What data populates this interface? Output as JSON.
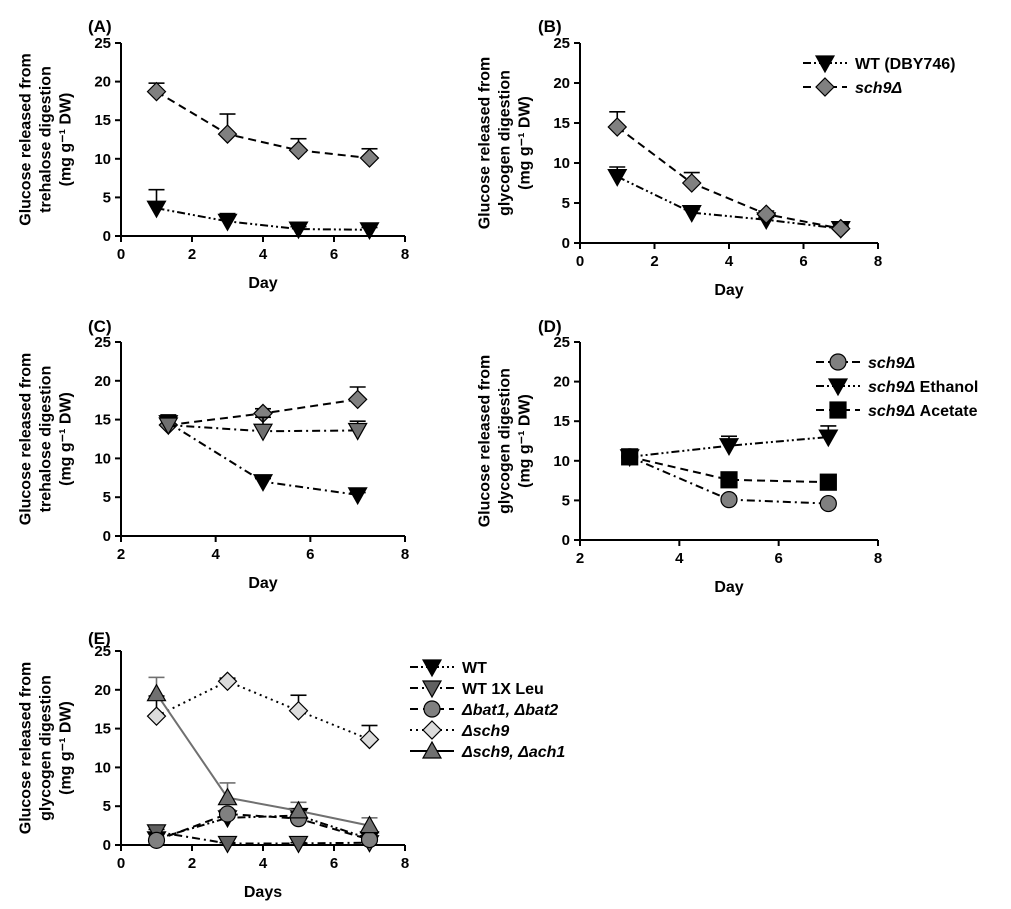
{
  "chart_data": [
    {
      "id": "A",
      "type": "line",
      "panel_label": "(A)",
      "xlabel": "Day",
      "ylabel_lines": [
        "Glucose released from",
        "trehalose digestion",
        "(mg g⁻¹ DW)"
      ],
      "xlim": [
        0,
        8
      ],
      "ylim": [
        0,
        25
      ],
      "xticks": [
        0,
        2,
        4,
        6,
        8
      ],
      "yticks": [
        0,
        5,
        10,
        15,
        20,
        25
      ],
      "series": [
        {
          "name": "WT (DBY746)",
          "marker": "triangle-down",
          "dash": "dashdotdot",
          "fill": "#000000",
          "linecolor": "#000000",
          "x": [
            1,
            3,
            5,
            7
          ],
          "y": [
            3.6,
            1.9,
            0.9,
            0.8
          ],
          "err": [
            2.4,
            1.0,
            0.3,
            0.3
          ]
        },
        {
          "name": "sch9Δ",
          "marker": "diamond",
          "dash": "dashed",
          "fill": "#808080",
          "linecolor": "#000000",
          "x": [
            1,
            3,
            5,
            7
          ],
          "y": [
            18.7,
            13.2,
            11.1,
            10.1
          ],
          "err": [
            1.1,
            2.6,
            1.5,
            1.2
          ]
        }
      ],
      "legend": []
    },
    {
      "id": "B",
      "type": "line",
      "panel_label": "(B)",
      "xlabel": "Day",
      "ylabel_lines": [
        "Glucose released from",
        "glycogen digestion",
        "(mg g⁻¹ DW)"
      ],
      "xlim": [
        0,
        8
      ],
      "ylim": [
        0,
        25
      ],
      "xticks": [
        0,
        2,
        4,
        6,
        8
      ],
      "yticks": [
        0,
        5,
        10,
        15,
        20,
        25
      ],
      "series": [
        {
          "name": "WT (DBY746)",
          "marker": "triangle-down",
          "dash": "dashdotdot",
          "fill": "#000000",
          "linecolor": "#000000",
          "x": [
            1,
            3,
            5,
            7
          ],
          "y": [
            8.3,
            3.8,
            2.9,
            1.8
          ],
          "err": [
            1.2,
            0.4,
            0.3,
            0.2
          ]
        },
        {
          "name": "sch9Δ",
          "marker": "diamond",
          "dash": "dashed",
          "fill": "#808080",
          "linecolor": "#000000",
          "x": [
            1,
            3,
            5,
            7
          ],
          "y": [
            14.5,
            7.5,
            3.6,
            1.8
          ],
          "err": [
            1.9,
            1.3,
            0.4,
            0.3
          ]
        }
      ],
      "legend": [
        {
          "text": "WT (DBY746)",
          "italic": false,
          "marker": "triangle-down",
          "dash": "dashdotdot",
          "fill": "#000000"
        },
        {
          "text": "sch9Δ",
          "italic": true,
          "marker": "diamond",
          "dash": "dashed",
          "fill": "#808080"
        }
      ]
    },
    {
      "id": "C",
      "type": "line",
      "panel_label": "(C)",
      "xlabel": "Day",
      "ylabel_lines": [
        "Glucose released from",
        "trehalose digestion",
        "(mg g⁻¹ DW)"
      ],
      "xlim": [
        2,
        8
      ],
      "ylim": [
        0,
        25
      ],
      "xticks": [
        2,
        4,
        6,
        8
      ],
      "yticks": [
        0,
        5,
        10,
        15,
        20,
        25
      ],
      "series": [
        {
          "name": "sch9Δ",
          "marker": "diamond",
          "dash": "dashed",
          "fill": "#808080",
          "linecolor": "#000000",
          "x": [
            3,
            5,
            7
          ],
          "y": [
            14.3,
            15.8,
            17.6
          ],
          "err": [
            1.2,
            0.6,
            1.6
          ]
        },
        {
          "name": "sch9Δ Ethanol",
          "marker": "triangle-down",
          "dash": "dashdot",
          "fill": "#000000",
          "linecolor": "#000000",
          "x": [
            3,
            5,
            7
          ],
          "y": [
            14.6,
            7.0,
            5.3
          ],
          "err": [
            1.0,
            0.4,
            0.3
          ]
        },
        {
          "name": "sch9Δ Acetate",
          "marker": "triangle-down",
          "dash": "dashdot",
          "fill": "#707070",
          "linecolor": "#000000",
          "x": [
            3,
            5,
            7
          ],
          "y": [
            14.3,
            13.5,
            13.6
          ],
          "err": [
            1.0,
            1.8,
            1.2
          ]
        }
      ],
      "legend": []
    },
    {
      "id": "D",
      "type": "line",
      "panel_label": "(D)",
      "xlabel": "Day",
      "ylabel_lines": [
        "Glucose released from",
        "glycogen digestion",
        "(mg g⁻¹ DW)"
      ],
      "xlim": [
        2,
        8
      ],
      "ylim": [
        0,
        25
      ],
      "xticks": [
        2,
        4,
        6,
        8
      ],
      "yticks": [
        0,
        5,
        10,
        15,
        20,
        25
      ],
      "series": [
        {
          "name": "sch9Δ",
          "marker": "circle",
          "dash": "dashdot",
          "fill": "#808080",
          "linecolor": "#000000",
          "x": [
            3,
            5,
            7
          ],
          "y": [
            10.5,
            5.1,
            4.6
          ],
          "err": [
            0.4,
            0.4,
            0.3
          ]
        },
        {
          "name": "sch9Δ Ethanol",
          "marker": "triangle-down",
          "dash": "dashdotdot",
          "fill": "#000000",
          "linecolor": "#000000",
          "x": [
            3,
            5,
            7
          ],
          "y": [
            10.5,
            11.9,
            13.0
          ],
          "err": [
            0.4,
            1.2,
            1.4
          ]
        },
        {
          "name": "sch9Δ Acetate",
          "marker": "square",
          "dash": "dashed",
          "fill": "#000000",
          "linecolor": "#000000",
          "x": [
            3,
            5,
            7
          ],
          "y": [
            10.5,
            7.6,
            7.3
          ],
          "err": [
            0.4,
            0.5,
            0.4
          ]
        }
      ],
      "legend": [
        {
          "text": "sch9Δ",
          "italic": true,
          "suffix": "",
          "marker": "circle",
          "dash": "dashdot",
          "fill": "#808080"
        },
        {
          "text": "sch9Δ",
          "italic": true,
          "suffix": " Ethanol",
          "marker": "triangle-down",
          "dash": "dashdotdot",
          "fill": "#000000"
        },
        {
          "text": "sch9Δ",
          "italic": true,
          "suffix": " Acetate",
          "marker": "square",
          "dash": "dashed",
          "fill": "#000000"
        }
      ]
    },
    {
      "id": "E",
      "type": "line",
      "panel_label": "(E)",
      "xlabel": "Days",
      "ylabel_lines": [
        "Glucose released from",
        "glycogen digestion",
        "(mg g⁻¹ DW)"
      ],
      "xlim": [
        0,
        8
      ],
      "ylim": [
        0,
        25
      ],
      "xticks": [
        0,
        2,
        4,
        6,
        8
      ],
      "yticks": [
        0,
        5,
        10,
        15,
        20,
        25
      ],
      "series": [
        {
          "name": "WT",
          "marker": "triangle-down",
          "dash": "dashdotdot",
          "fill": "#000000",
          "linecolor": "#000000",
          "x": [
            1,
            3,
            5,
            7
          ],
          "y": [
            0.8,
            3.5,
            3.8,
            0.8
          ],
          "err": [
            0.2,
            0.4,
            0.4,
            0.2
          ]
        },
        {
          "name": "WT 1X Leu",
          "marker": "triangle-down",
          "dash": "dashdot",
          "fill": "#606060",
          "linecolor": "#000000",
          "x": [
            1,
            3,
            5,
            7
          ],
          "y": [
            1.7,
            0.2,
            0.2,
            0.3
          ],
          "err": [
            0.3,
            0.1,
            0.1,
            0.1
          ]
        },
        {
          "name": "Δbat1, Δbat2",
          "marker": "circle",
          "dash": "dashed",
          "fill": "#808080",
          "linecolor": "#000000",
          "x": [
            1,
            3,
            5,
            7
          ],
          "y": [
            0.6,
            4.0,
            3.4,
            0.7
          ],
          "err": [
            0.2,
            0.5,
            0.5,
            0.2
          ]
        },
        {
          "name": "Δsch9",
          "marker": "diamond",
          "dash": "dotted",
          "fill": "#dcdcdc",
          "linecolor": "#000000",
          "x": [
            1,
            3,
            5,
            7
          ],
          "y": [
            16.6,
            21.1,
            17.3,
            13.6
          ],
          "err": [
            2.6,
            0.4,
            2.0,
            1.8
          ]
        },
        {
          "name": "Δsch9, Δach1",
          "marker": "triangle-up",
          "dash": "solid",
          "fill": "#707070",
          "linecolor": "#707070",
          "x": [
            1,
            3,
            5,
            7
          ],
          "y": [
            19.5,
            6.1,
            4.4,
            2.5
          ],
          "err": [
            2.1,
            1.9,
            1.1,
            1.0
          ]
        }
      ],
      "legend": [
        {
          "text": "WT",
          "italic": false,
          "suffix": "",
          "marker": "triangle-down",
          "dash": "dashdotdot",
          "fill": "#000000"
        },
        {
          "text": "WT 1X Leu",
          "italic": false,
          "suffix": "",
          "marker": "triangle-down",
          "dash": "dashdot",
          "fill": "#606060"
        },
        {
          "text": "Δbat1, Δbat2",
          "italic": true,
          "suffix": "",
          "marker": "circle",
          "dash": "dashed",
          "fill": "#808080"
        },
        {
          "text": "Δsch9",
          "italic": true,
          "suffix": "",
          "marker": "diamond",
          "dash": "dotted",
          "fill": "#dcdcdc"
        },
        {
          "text": "Δsch9, Δach1",
          "italic": true,
          "suffix": "",
          "marker": "triangle-up",
          "dash": "solid",
          "fill": "#707070"
        }
      ]
    }
  ]
}
